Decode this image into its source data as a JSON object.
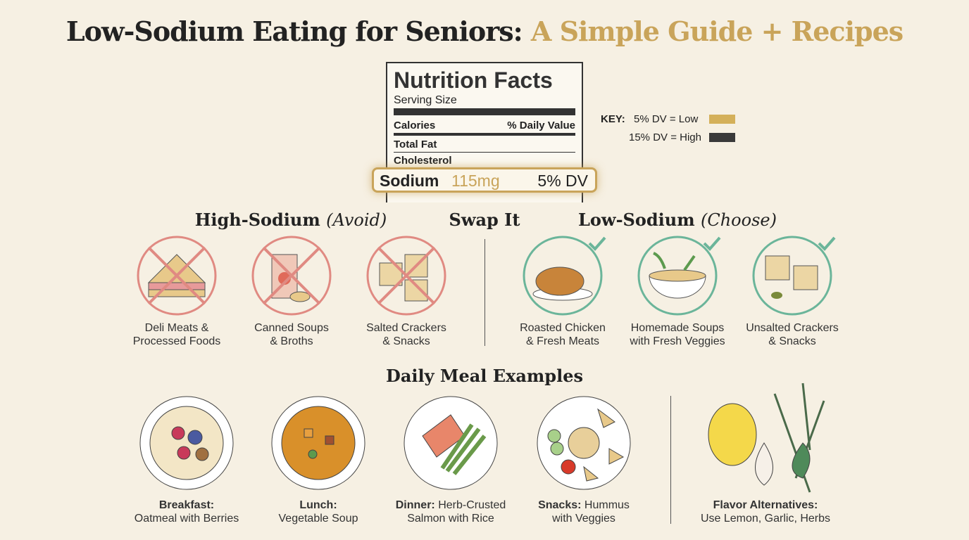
{
  "title": {
    "main": "Low-Sodium Eating for Seniors:",
    "accent": "A Simple Guide + Recipes"
  },
  "nutrition_label": {
    "title": "Nutrition Facts",
    "serving": "Serving Size",
    "calories": "Calories",
    "daily_value_header": "% Daily Value",
    "rows": [
      "Total Fat",
      "Cholesterol"
    ],
    "highlight": {
      "nutrient": "Sodium",
      "amount": "115mg",
      "dv": "5% DV"
    }
  },
  "key": {
    "label": "KEY:",
    "items": [
      "5% DV = Low",
      "15% DV = High"
    ]
  },
  "swap": {
    "avoid_heading": {
      "text": "High-Sodium",
      "note": "(Avoid)"
    },
    "swap_label": "Swap It",
    "choose_heading": {
      "text": "Low-Sodium",
      "note": "(Choose)"
    },
    "avoid_items": [
      [
        "Deli Meats &",
        "Processed Foods"
      ],
      [
        "Canned Soups",
        "& Broths"
      ],
      [
        "Salted Crackers",
        "& Snacks"
      ]
    ],
    "choose_items": [
      [
        "Roasted Chicken",
        "& Fresh Meats"
      ],
      [
        "Homemade Soups",
        "with Fresh Veggies"
      ],
      [
        "Unsalted Crackers",
        "& Snacks"
      ]
    ]
  },
  "meals": {
    "heading": "Daily Meal Examples",
    "items": [
      {
        "label": "Breakfast:",
        "lines": [
          "Oatmeal with Berries"
        ]
      },
      {
        "label": "Lunch:",
        "lines": [
          "Vegetable Soup"
        ]
      },
      {
        "label": "Dinner:",
        "lines": [
          "Herb-Crusted",
          "Salmon with Rice"
        ]
      },
      {
        "label": "Snacks:",
        "lines": [
          "Hummus",
          "with Veggies"
        ]
      }
    ],
    "flavor": {
      "label": "Flavor Alternatives:",
      "text": "Use Lemon, Garlic, Herbs"
    }
  }
}
